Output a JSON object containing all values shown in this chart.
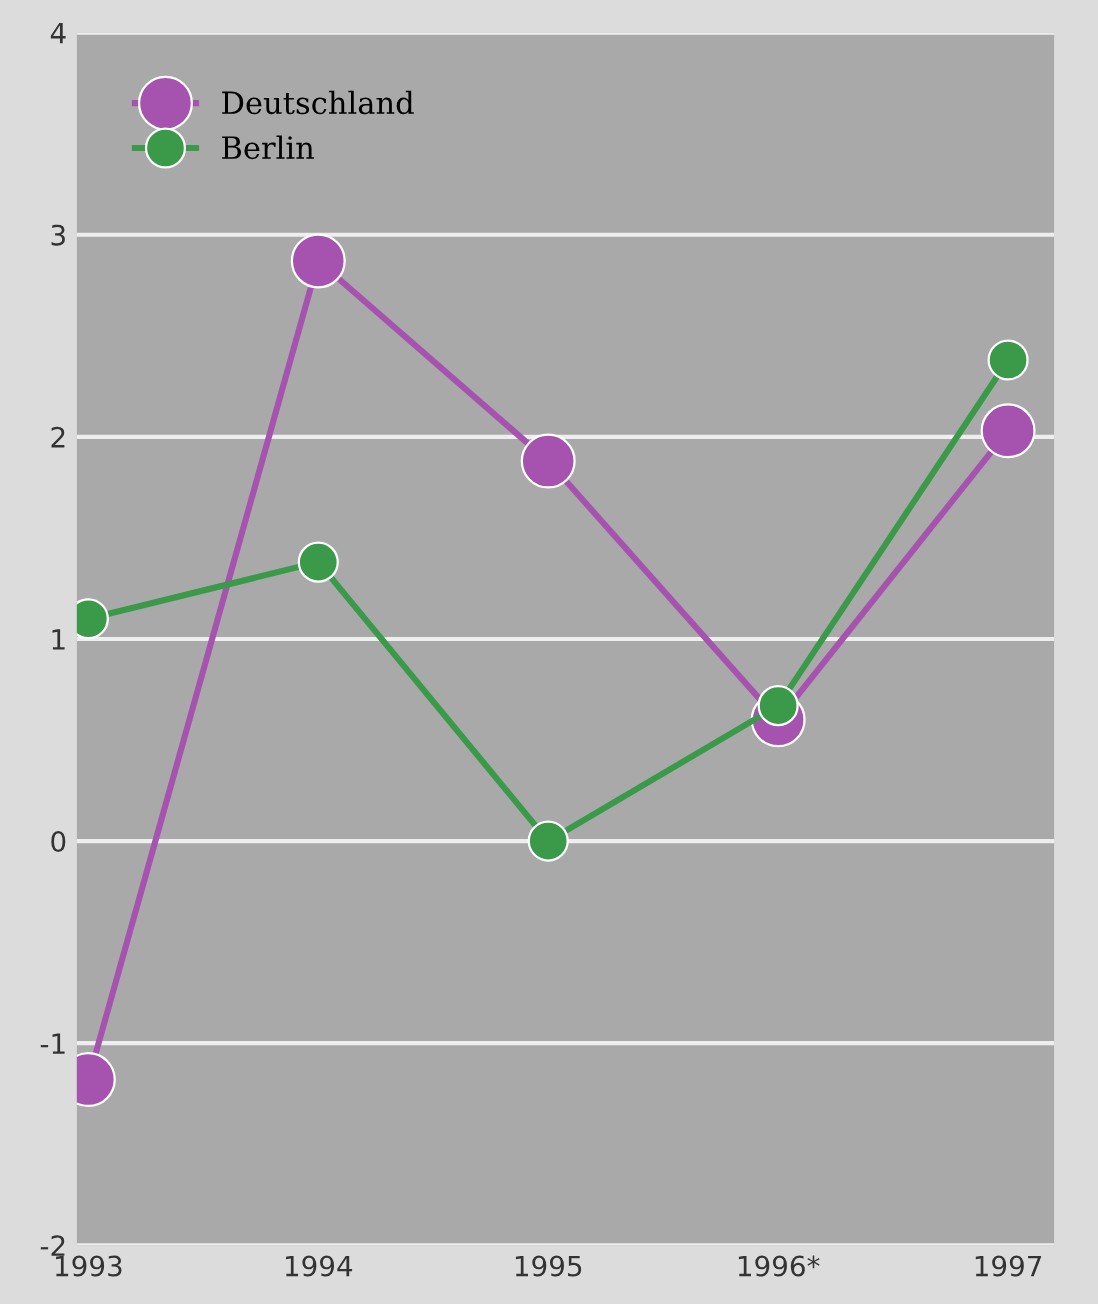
{
  "chart_data": {
    "type": "line",
    "categories": [
      "1993",
      "1994",
      "1995",
      "1996*",
      "1997"
    ],
    "series": [
      {
        "name": "Deutschland",
        "color": "#a653b0",
        "values": [
          -1.18,
          2.87,
          1.88,
          0.6,
          2.03
        ]
      },
      {
        "name": "Berlin",
        "color": "#3a9a4a",
        "values": [
          1.1,
          1.38,
          0,
          0.67,
          2.38
        ]
      }
    ],
    "ylim": [
      -2,
      4
    ],
    "yticks": [
      -2,
      -1,
      0,
      1,
      2,
      3,
      4
    ],
    "grid": "y",
    "legend": "top left",
    "marker": "circle"
  }
}
